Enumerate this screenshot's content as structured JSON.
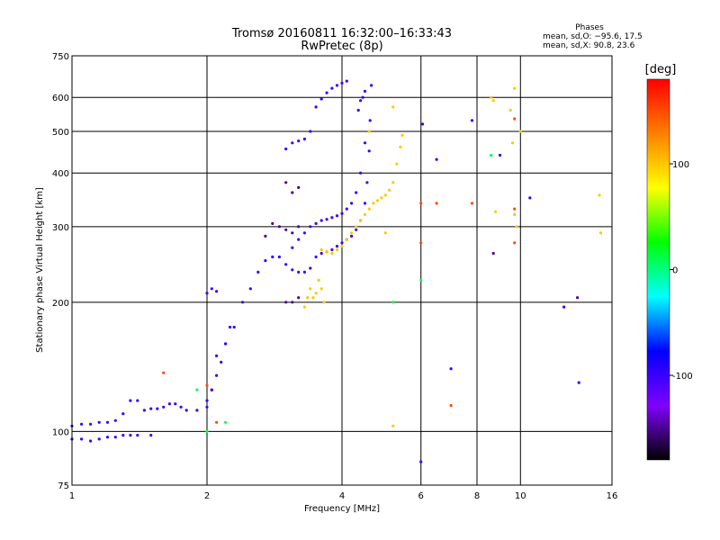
{
  "chart_data": {
    "type": "scatter",
    "title": "Tromsø 20160811 16:32:00–16:33:43",
    "subtitle": "RwPretec (8p)",
    "xlabel": "Frequency [MHz]",
    "ylabel": "Stationary phase Virtual Height [km]",
    "x_scale": "log",
    "y_scale": "log",
    "xlim": [
      1,
      16
    ],
    "ylim": [
      75,
      750
    ],
    "x_ticks": [
      1,
      2,
      4,
      6,
      8,
      10,
      16
    ],
    "x_tick_labels": [
      "1",
      "2",
      "4",
      "6",
      "8",
      "10",
      "16"
    ],
    "y_ticks": [
      75,
      100,
      200,
      300,
      400,
      500,
      600,
      750
    ],
    "y_tick_labels": [
      "75",
      "100",
      "200",
      "300",
      "400",
      "500",
      "600",
      "750"
    ],
    "grid": true,
    "stats": {
      "title": "Phases",
      "line1": "mean, sd,O: −95.6, 17.5",
      "line2": "mean, sd,X:  90.8, 23.6"
    },
    "colorbar": {
      "label": "[deg]",
      "range": [
        -180,
        180
      ],
      "ticks": [
        100,
        0,
        -100
      ],
      "tick_labels": [
        "100",
        "0",
        "-100"
      ],
      "colors": [
        "#ff0000",
        "#ff8000",
        "#ffff00",
        "#00ff00",
        "#00ffff",
        "#0000ff",
        "#8000ff",
        "#000000"
      ]
    },
    "series": [
      {
        "mode": "O",
        "phase_deg": -100,
        "points": [
          [
            1.0,
            103
          ],
          [
            1.05,
            104
          ],
          [
            1.1,
            104
          ],
          [
            1.15,
            105
          ],
          [
            1.2,
            105
          ],
          [
            1.25,
            106
          ],
          [
            1.3,
            110
          ],
          [
            1.35,
            118
          ],
          [
            1.4,
            118
          ],
          [
            1.45,
            112
          ],
          [
            1.5,
            113
          ],
          [
            1.55,
            113
          ],
          [
            1.6,
            114
          ],
          [
            1.65,
            116
          ],
          [
            1.7,
            116
          ],
          [
            1.75,
            114
          ],
          [
            1.8,
            112
          ],
          [
            1.9,
            112
          ],
          [
            2.0,
            114
          ],
          [
            2.05,
            125
          ],
          [
            2.1,
            150
          ],
          [
            2.2,
            160
          ],
          [
            2.3,
            175
          ],
          [
            2.4,
            200
          ],
          [
            2.5,
            215
          ],
          [
            2.6,
            235
          ],
          [
            2.7,
            250
          ],
          [
            2.8,
            255
          ],
          [
            2.9,
            255
          ],
          [
            3.0,
            245
          ],
          [
            3.1,
            238
          ],
          [
            3.2,
            235
          ],
          [
            3.3,
            235
          ],
          [
            3.4,
            240
          ],
          [
            3.5,
            255
          ],
          [
            3.6,
            260
          ],
          [
            3.7,
            262
          ],
          [
            3.8,
            265
          ],
          [
            3.9,
            270
          ],
          [
            4.0,
            275
          ],
          [
            4.1,
            280
          ],
          [
            4.2,
            285
          ],
          [
            4.3,
            295
          ],
          [
            4.4,
            310
          ],
          [
            4.5,
            340
          ],
          [
            4.55,
            380
          ],
          [
            4.6,
            450
          ],
          [
            4.62,
            530
          ],
          [
            4.65,
            640
          ],
          [
            1.0,
            96
          ],
          [
            1.05,
            96
          ],
          [
            1.1,
            95
          ],
          [
            1.15,
            96
          ],
          [
            1.2,
            97
          ],
          [
            1.25,
            97
          ],
          [
            1.3,
            98
          ],
          [
            1.35,
            98
          ],
          [
            1.4,
            98
          ],
          [
            1.5,
            98
          ],
          [
            3.1,
            268
          ],
          [
            3.2,
            280
          ],
          [
            3.3,
            290
          ],
          [
            3.4,
            300
          ],
          [
            3.5,
            305
          ],
          [
            3.6,
            310
          ],
          [
            3.7,
            312
          ],
          [
            3.8,
            315
          ],
          [
            3.9,
            318
          ],
          [
            4.0,
            322
          ],
          [
            4.1,
            330
          ],
          [
            4.2,
            340
          ],
          [
            4.3,
            360
          ],
          [
            4.4,
            400
          ],
          [
            4.5,
            470
          ],
          [
            3.5,
            570
          ],
          [
            3.6,
            595
          ],
          [
            3.7,
            615
          ],
          [
            3.8,
            630
          ],
          [
            3.9,
            640
          ],
          [
            4.0,
            648
          ],
          [
            4.1,
            655
          ],
          [
            2.0,
            118
          ],
          [
            2.05,
            125
          ],
          [
            2.1,
            135
          ],
          [
            2.15,
            145
          ],
          [
            2.2,
            160
          ],
          [
            2.25,
            175
          ],
          [
            2.0,
            210
          ],
          [
            2.05,
            215
          ],
          [
            2.1,
            212
          ],
          [
            3.0,
            455
          ],
          [
            3.1,
            470
          ],
          [
            3.2,
            475
          ],
          [
            3.3,
            480
          ],
          [
            3.4,
            500
          ],
          [
            4.35,
            560
          ],
          [
            4.4,
            590
          ],
          [
            4.45,
            600
          ],
          [
            4.5,
            620
          ],
          [
            6.0,
            85
          ],
          [
            7.0,
            140
          ],
          [
            6.5,
            430
          ],
          [
            10.5,
            350
          ],
          [
            12.5,
            195
          ],
          [
            13.5,
            130
          ],
          [
            6.05,
            520
          ],
          [
            7.8,
            530
          ],
          [
            9.0,
            440
          ]
        ]
      },
      {
        "mode": "X",
        "phase_deg": 100,
        "points": [
          [
            3.6,
            265
          ],
          [
            3.7,
            262
          ],
          [
            3.8,
            260
          ],
          [
            3.9,
            265
          ],
          [
            4.0,
            270
          ],
          [
            4.1,
            280
          ],
          [
            4.2,
            290
          ],
          [
            4.3,
            300
          ],
          [
            4.4,
            310
          ],
          [
            4.5,
            320
          ],
          [
            4.6,
            330
          ],
          [
            4.7,
            340
          ],
          [
            4.8,
            345
          ],
          [
            4.9,
            350
          ],
          [
            5.0,
            355
          ],
          [
            5.1,
            365
          ],
          [
            5.2,
            380
          ],
          [
            5.3,
            420
          ],
          [
            5.4,
            460
          ],
          [
            5.45,
            490
          ],
          [
            3.3,
            195
          ],
          [
            3.35,
            205
          ],
          [
            3.4,
            215
          ],
          [
            3.45,
            205
          ],
          [
            3.5,
            210
          ],
          [
            3.55,
            225
          ],
          [
            3.6,
            215
          ],
          [
            3.65,
            200
          ],
          [
            5.2,
            103
          ],
          [
            5.0,
            290
          ],
          [
            4.6,
            500
          ],
          [
            5.2,
            570
          ],
          [
            8.6,
            600
          ],
          [
            8.7,
            590
          ],
          [
            8.8,
            325
          ],
          [
            9.5,
            560
          ],
          [
            9.6,
            470
          ],
          [
            9.7,
            320
          ],
          [
            9.7,
            630
          ],
          [
            9.8,
            300
          ],
          [
            10.0,
            500
          ],
          [
            15.0,
            355
          ],
          [
            15.1,
            290
          ]
        ]
      },
      {
        "mode": "noise",
        "phase_deg": -150,
        "points": [
          [
            2.7,
            285
          ],
          [
            2.8,
            305
          ],
          [
            2.9,
            300
          ],
          [
            3.0,
            295
          ],
          [
            3.1,
            290
          ],
          [
            3.2,
            300
          ],
          [
            3.0,
            200
          ],
          [
            3.1,
            200
          ],
          [
            3.2,
            205
          ],
          [
            3.0,
            380
          ],
          [
            3.1,
            360
          ],
          [
            3.2,
            370
          ],
          [
            8.7,
            260
          ],
          [
            13.4,
            205
          ]
        ]
      },
      {
        "mode": "noise",
        "phase_deg": 150,
        "points": [
          [
            1.6,
            137
          ],
          [
            2.0,
            128
          ],
          [
            2.1,
            105
          ],
          [
            6.0,
            340
          ],
          [
            6.0,
            275
          ],
          [
            6.5,
            340
          ],
          [
            7.0,
            115
          ],
          [
            7.8,
            340
          ],
          [
            9.7,
            330
          ],
          [
            9.7,
            275
          ],
          [
            9.7,
            535
          ]
        ]
      },
      {
        "mode": "noise",
        "phase_deg": 10,
        "points": [
          [
            1.9,
            125
          ],
          [
            2.0,
            100
          ],
          [
            2.2,
            105
          ],
          [
            5.2,
            200
          ],
          [
            6.0,
            225
          ],
          [
            8.6,
            440
          ]
        ]
      }
    ]
  }
}
